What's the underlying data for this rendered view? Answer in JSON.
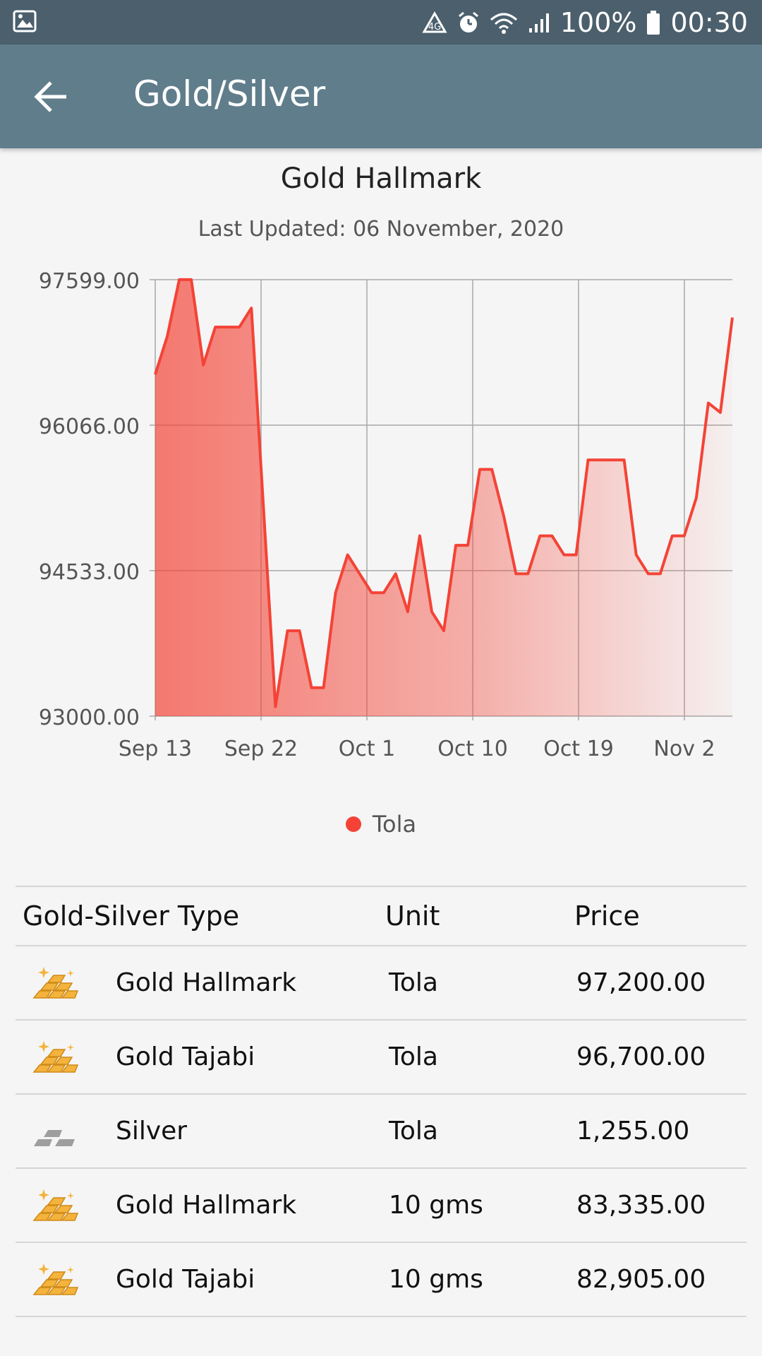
{
  "status_bar": {
    "battery": "100%",
    "time": "00:30"
  },
  "app_bar": {
    "title": "Gold/Silver"
  },
  "chart_header": {
    "title": "Gold Hallmark",
    "subtitle": "Last Updated: 06 November, 2020"
  },
  "chart_data": {
    "type": "area",
    "title": "Gold Hallmark",
    "ytick_labels": [
      "97599.00",
      "96066.00",
      "94533.00",
      "93000.00"
    ],
    "ylim": [
      93000,
      97599
    ],
    "xtick_labels": [
      "Sep 13",
      "Sep 22",
      "Oct 1",
      "Oct 10",
      "Oct 19",
      "Nov 2"
    ],
    "legend_position": "bottom",
    "grid": true,
    "series": [
      {
        "name": "Tola",
        "color": "#f44336",
        "values": [
          96600,
          97000,
          97600,
          97600,
          96700,
          97100,
          97100,
          97100,
          97300,
          95200,
          93100,
          93900,
          93900,
          93300,
          93300,
          94300,
          94700,
          94500,
          94300,
          94300,
          94500,
          94100,
          94900,
          94100,
          93900,
          94800,
          94800,
          95600,
          95600,
          95100,
          94500,
          94500,
          94900,
          94900,
          94700,
          94700,
          95700,
          95700,
          95700,
          95700,
          94700,
          94500,
          94500,
          94900,
          94900,
          95300,
          96300,
          96200,
          97200
        ]
      }
    ]
  },
  "table": {
    "headers": {
      "type": "Gold-Silver Type",
      "unit": "Unit",
      "price": "Price"
    },
    "rows": [
      {
        "icon": "gold-bars-icon",
        "name": "Gold Hallmark",
        "unit": "Tola",
        "price": "97,200.00"
      },
      {
        "icon": "gold-bars-icon",
        "name": "Gold Tajabi",
        "unit": "Tola",
        "price": "96,700.00"
      },
      {
        "icon": "silver-bars-icon",
        "name": "Silver",
        "unit": "Tola",
        "price": "1,255.00"
      },
      {
        "icon": "gold-bars-icon",
        "name": "Gold Hallmark",
        "unit": "10 gms",
        "price": "83,335.00"
      },
      {
        "icon": "gold-bars-icon",
        "name": "Gold Tajabi",
        "unit": "10 gms",
        "price": "82,905.00"
      }
    ]
  }
}
